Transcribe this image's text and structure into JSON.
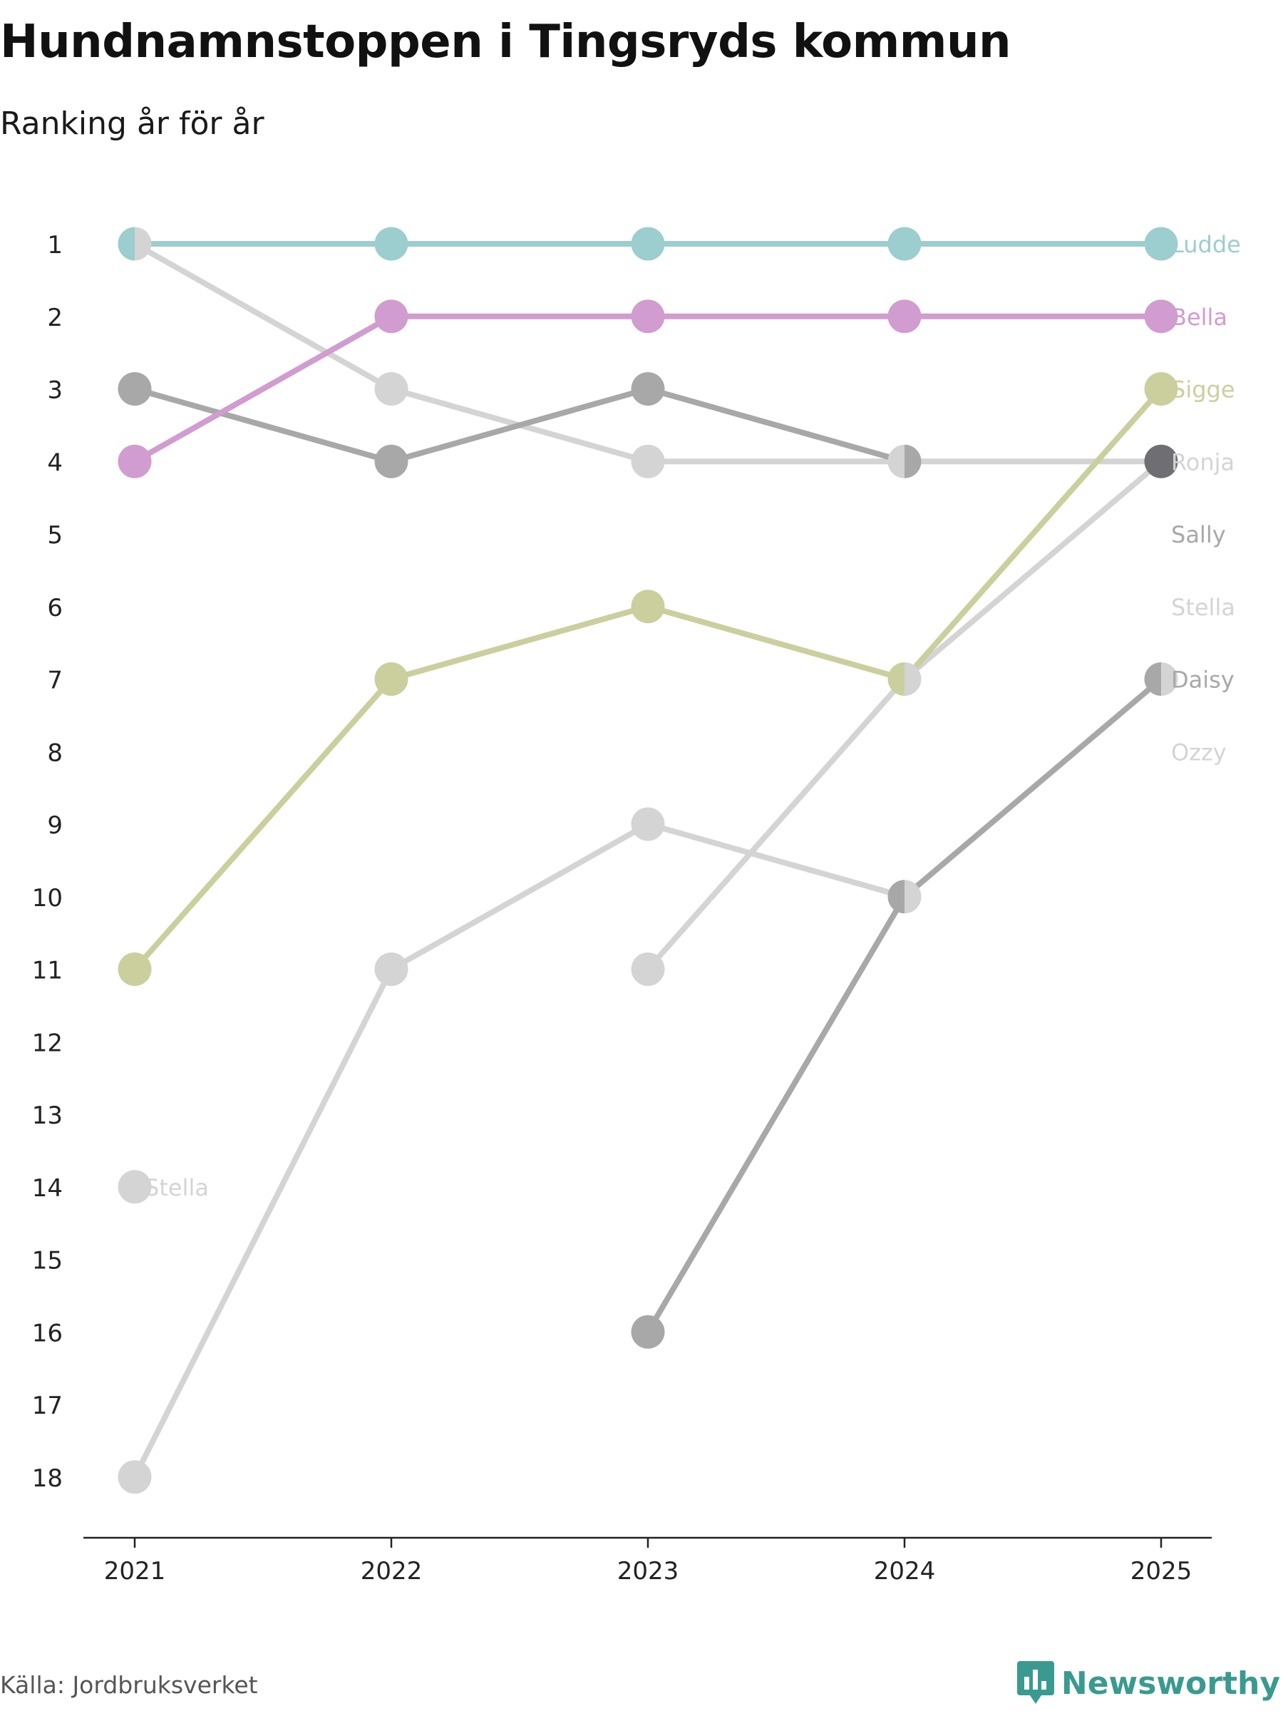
{
  "title": "Hundnamnstoppen i Tingsryds kommun",
  "subtitle": "Ranking år för år",
  "source": "Källa: Jordbruksverket",
  "brand": {
    "name": "Newsworthy",
    "icon": "newsworthy-logo-icon",
    "color": "#3a9a90"
  },
  "chart_data": {
    "type": "bump",
    "title": "Hundnamnstoppen i Tingsryds kommun",
    "subtitle": "Ranking år för år",
    "x": [
      "2021",
      "2022",
      "2023",
      "2024",
      "2025"
    ],
    "y_ticks": [
      "1",
      "2",
      "3",
      "4",
      "5",
      "6",
      "7",
      "8",
      "9",
      "10",
      "11",
      "12",
      "13",
      "14",
      "15",
      "16",
      "17",
      "18"
    ],
    "ylim": [
      1,
      18
    ],
    "y_inverted": true,
    "series": [
      {
        "name": "Ozzy",
        "label": "",
        "color": "#d4d4d4",
        "values": [
          18,
          11,
          9,
          10,
          null
        ]
      },
      {
        "name": "Stella",
        "label": "",
        "color": "#d4d4d4",
        "values": [
          null,
          null,
          11,
          7,
          4
        ]
      },
      {
        "name": "Sally",
        "label": "",
        "color": "#d4d4d4",
        "values": [
          1,
          3,
          4,
          4,
          4
        ]
      },
      {
        "name": "Daisy",
        "label": "",
        "color": "#a8a8a8",
        "values": [
          3,
          4,
          3,
          4,
          null
        ]
      },
      {
        "name": "Daisy",
        "label": "",
        "color": "#a8a8a8",
        "values": [
          null,
          null,
          16,
          10,
          7
        ]
      },
      {
        "name": "Sigge",
        "label": "",
        "color": "#cbcf9e",
        "values": [
          11,
          7,
          6,
          7,
          3
        ]
      },
      {
        "name": "Bella",
        "label": "",
        "color": "#d19ccf",
        "values": [
          4,
          2,
          2,
          2,
          2
        ]
      },
      {
        "name": "Ludde",
        "label": "",
        "color": "#9ccdcf",
        "values": [
          1,
          1,
          1,
          1,
          1
        ]
      },
      {
        "name": "Stella",
        "label": "",
        "color": "#d4d4d4",
        "values": [
          14,
          null,
          null,
          null,
          null
        ]
      }
    ],
    "markers": [
      {
        "x": "2021",
        "y": 1,
        "left": "#9ccdcf",
        "right": "#d4d4d4"
      },
      {
        "x": "2021",
        "y": 14,
        "left": "#d4d4d4",
        "right": "#d4d4d4"
      },
      {
        "x": "2024",
        "y": 4,
        "left": "#d4d4d4",
        "right": "#a8a8a8"
      },
      {
        "x": "2024",
        "y": 7,
        "left": "#cbcf9e",
        "right": "#d4d4d4"
      },
      {
        "x": "2024",
        "y": 10,
        "left": "#a8a8a8",
        "right": "#d4d4d4"
      },
      {
        "x": "2025",
        "y": 4,
        "left": "#6e6e73",
        "right": "#6e6e73"
      },
      {
        "x": "2025",
        "y": 7,
        "left": "#a8a8a8",
        "right": "#d4d4d4"
      }
    ],
    "end_labels": [
      {
        "text": "Ludde",
        "rank": 1,
        "color": "#9ccdcf"
      },
      {
        "text": "Bella",
        "rank": 2,
        "color": "#d19ccf"
      },
      {
        "text": "Sigge",
        "rank": 3,
        "color": "#cbcf9e"
      },
      {
        "text": "Ronja",
        "rank": 4,
        "color": "#d4d4d4"
      },
      {
        "text": "Sally",
        "rank": 5,
        "color": "#a8a8a8"
      },
      {
        "text": "Stella",
        "rank": 6,
        "color": "#d4d4d4"
      },
      {
        "text": "Daisy",
        "rank": 7,
        "color": "#a8a8a8"
      },
      {
        "text": "Ozzy",
        "rank": 8,
        "color": "#d4d4d4"
      }
    ],
    "annotations": [
      {
        "text": "Stella",
        "x": "2021",
        "rank": 14,
        "color": "#d4d4d4"
      }
    ]
  }
}
